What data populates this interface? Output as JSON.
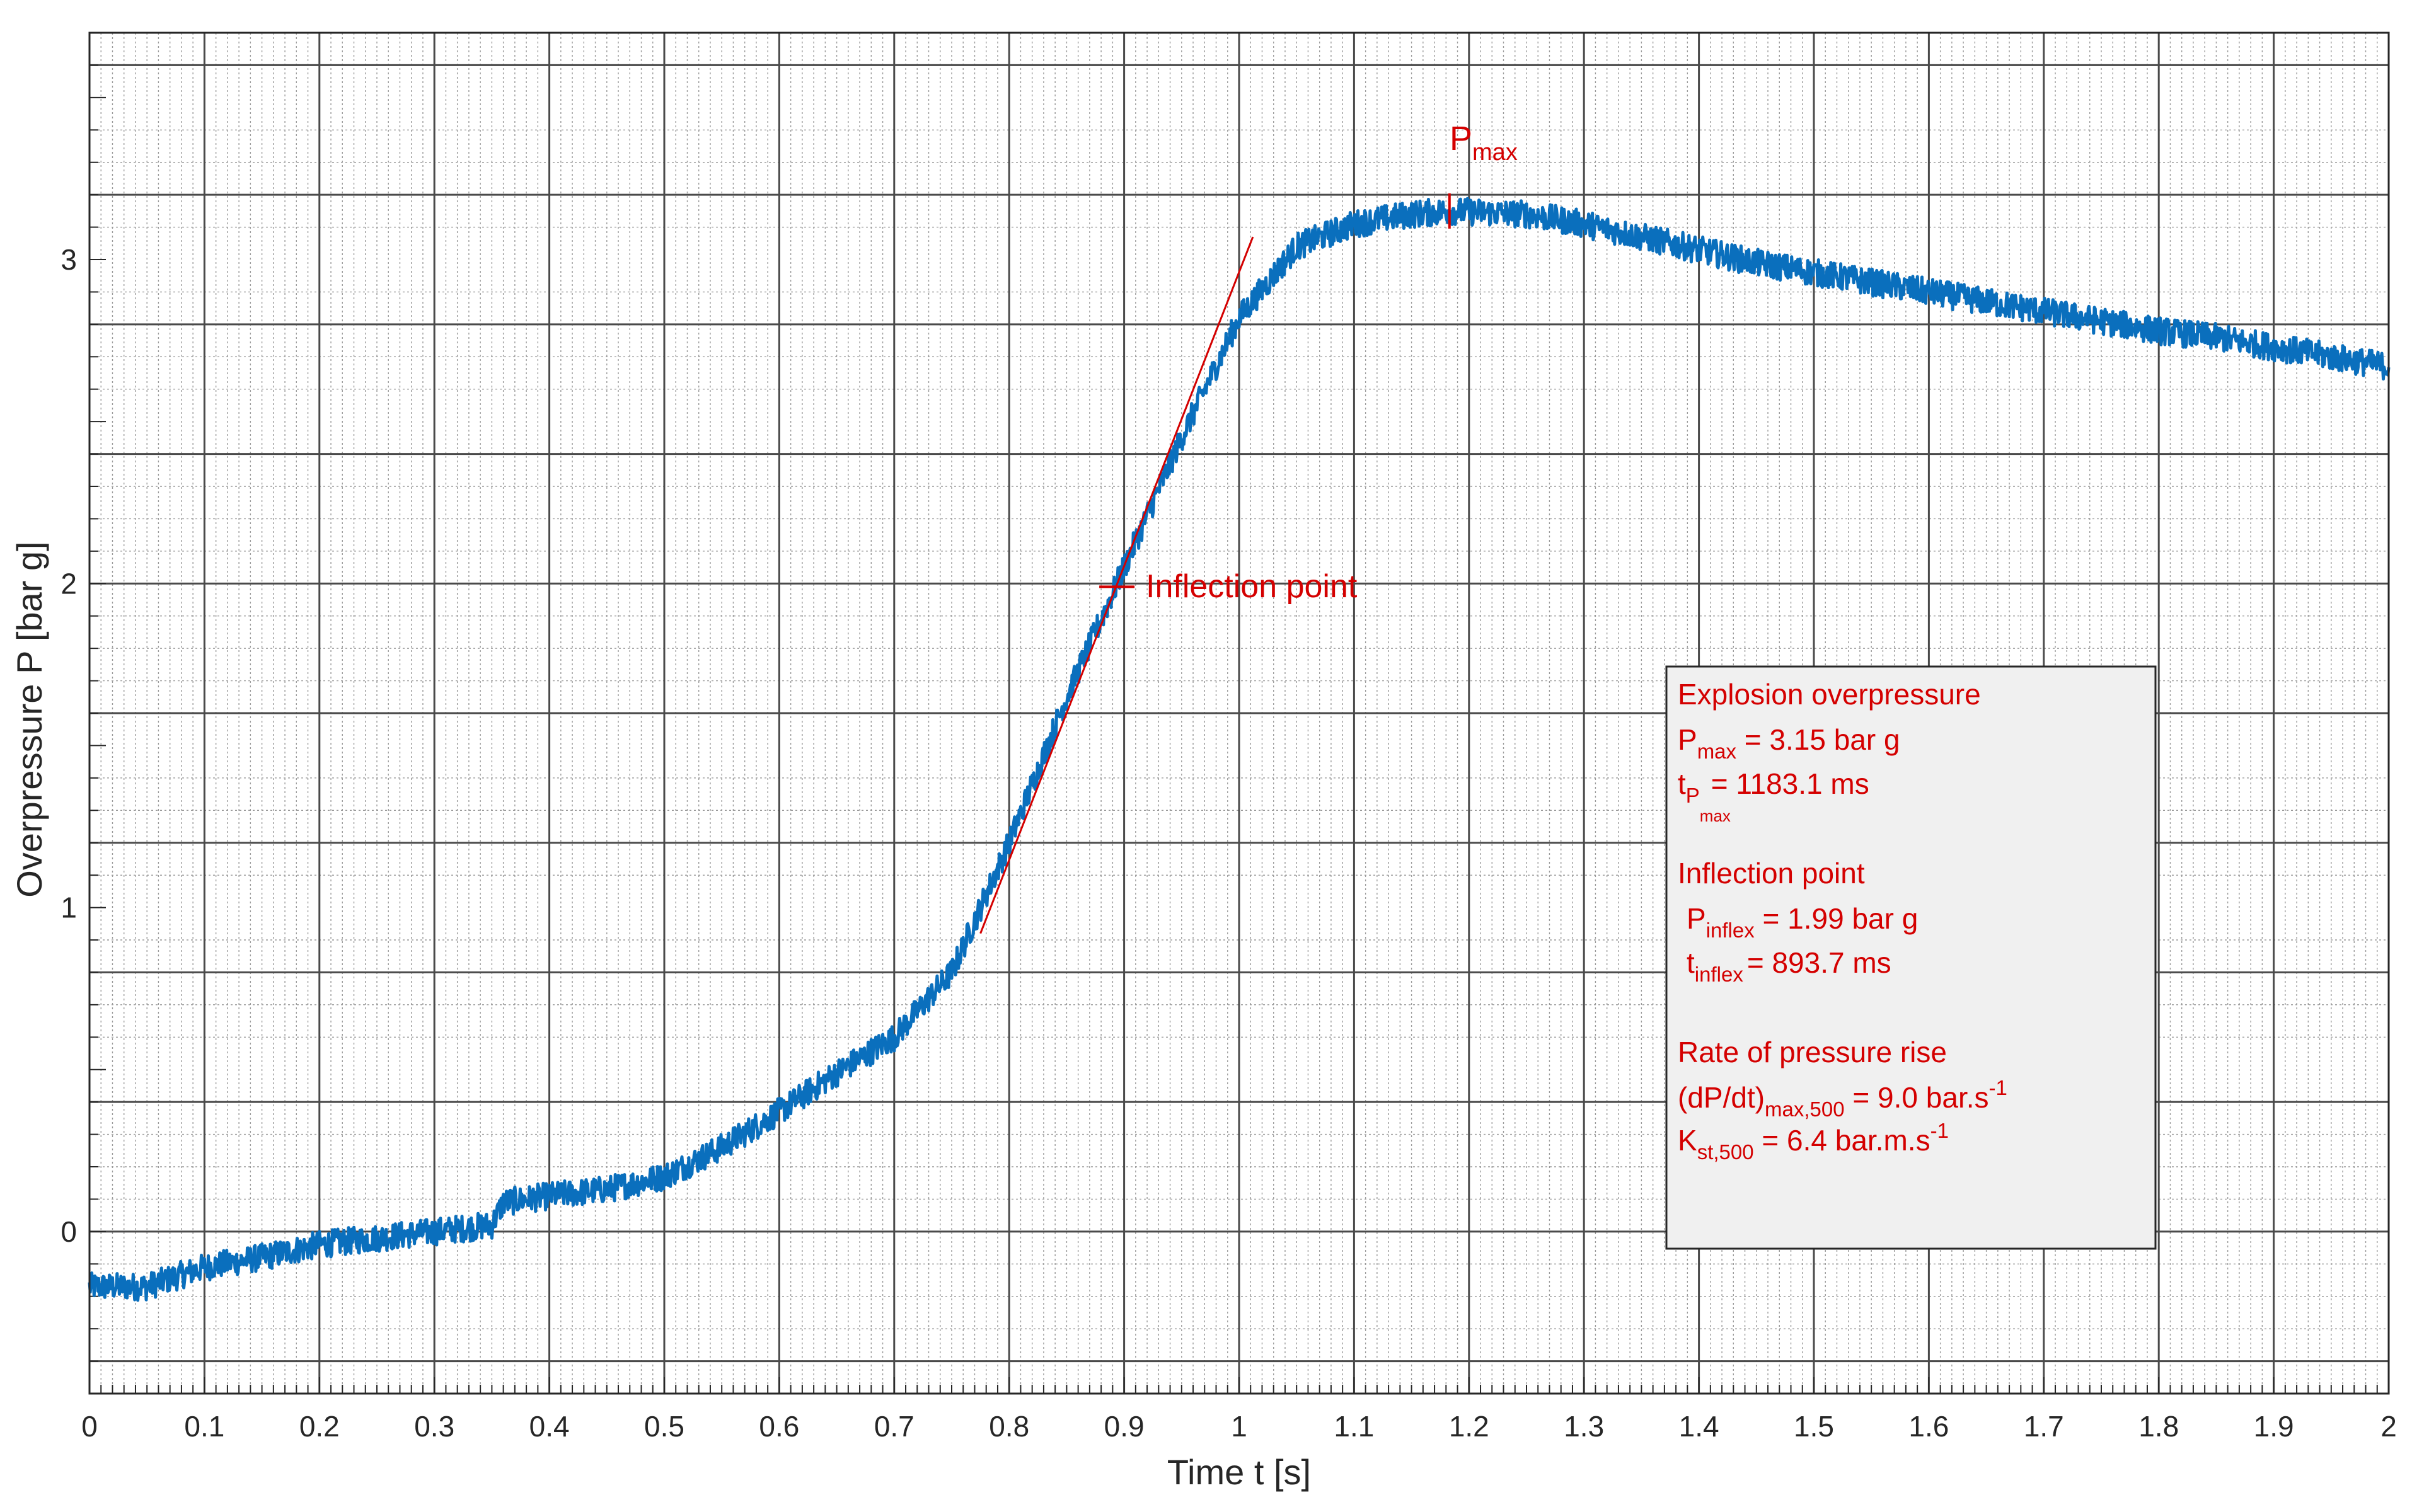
{
  "chart_data": {
    "type": "line",
    "title": "",
    "xlabel": "Time t [s]",
    "ylabel": "Overpressure P [bar g]",
    "xlim": [
      0,
      2
    ],
    "ylim": [
      -0.5,
      3.7
    ],
    "x_ticks": [
      "0",
      "0.1",
      "0.2",
      "0.3",
      "0.4",
      "0.5",
      "0.6",
      "0.7",
      "0.8",
      "0.9",
      "1",
      "1.1",
      "1.2",
      "1.3",
      "1.4",
      "1.5",
      "1.6",
      "1.7",
      "1.8",
      "1.9",
      "2"
    ],
    "y_ticks": [
      "0",
      "1",
      "2",
      "3"
    ],
    "grid": "major and minor",
    "series": [
      {
        "color": "#0a6fbd",
        "x": [
          0,
          0.05,
          0.1,
          0.15,
          0.2,
          0.25,
          0.3,
          0.35,
          0.36,
          0.4,
          0.45,
          0.5,
          0.55,
          0.6,
          0.65,
          0.7,
          0.75,
          0.8,
          0.85,
          0.9,
          0.95,
          1.0,
          1.05,
          1.1,
          1.15,
          1.183,
          1.25,
          1.3,
          1.35,
          1.4,
          1.45,
          1.5,
          1.55,
          1.6,
          1.65,
          1.7,
          1.75,
          1.8,
          1.85,
          1.9,
          1.95,
          2.0
        ],
        "y": [
          -0.17,
          -0.17,
          -0.11,
          -0.08,
          -0.04,
          -0.02,
          0.0,
          0.02,
          0.09,
          0.11,
          0.13,
          0.17,
          0.26,
          0.37,
          0.49,
          0.6,
          0.8,
          1.2,
          1.65,
          2.05,
          2.45,
          2.82,
          3.04,
          3.11,
          3.14,
          3.15,
          3.14,
          3.11,
          3.07,
          3.03,
          2.99,
          2.96,
          2.93,
          2.9,
          2.87,
          2.84,
          2.81,
          2.78,
          2.76,
          2.73,
          2.7,
          2.67
        ]
      }
    ],
    "annotations": {
      "tangent_line": {
        "color": "#d40000",
        "x": [
          0.775,
          1.012
        ],
        "y": [
          0.92,
          3.07
        ]
      },
      "pmax_marker": {
        "x": 1.183,
        "y": 3.15,
        "label": "P",
        "label_sub": "max"
      },
      "inflection_marker": {
        "x": 0.8937,
        "y": 1.99,
        "label": "Inflection point"
      }
    },
    "info_box": {
      "heading1": "Explosion overpressure",
      "pmax_main": "P",
      "pmax_sub": "max",
      "pmax_value": " = 3.15 bar g",
      "tpmax_main": "t",
      "tpmax_sub": "P",
      "tpmax_subsub": "max",
      "tpmax_value": " = 1183.1 ms",
      "heading2": "Inflection point",
      "pinflex_main": "P",
      "pinflex_sub": "inflex",
      "pinflex_value": " = 1.99 bar g",
      "tinflex_main": "t",
      "tinflex_sub": "inflex",
      "tinflex_value": "= 893.7 ms",
      "heading3": "Rate of pressure rise",
      "dpdt_main": "(dP/dt)",
      "dpdt_sub": "max,500",
      "dpdt_value": " = 9.0 bar.s",
      "dpdt_sup": "-1",
      "kst_main": "K",
      "kst_sub": "st,500",
      "kst_value": " = 6.4 bar.m.s",
      "kst_sup": "-1"
    }
  }
}
